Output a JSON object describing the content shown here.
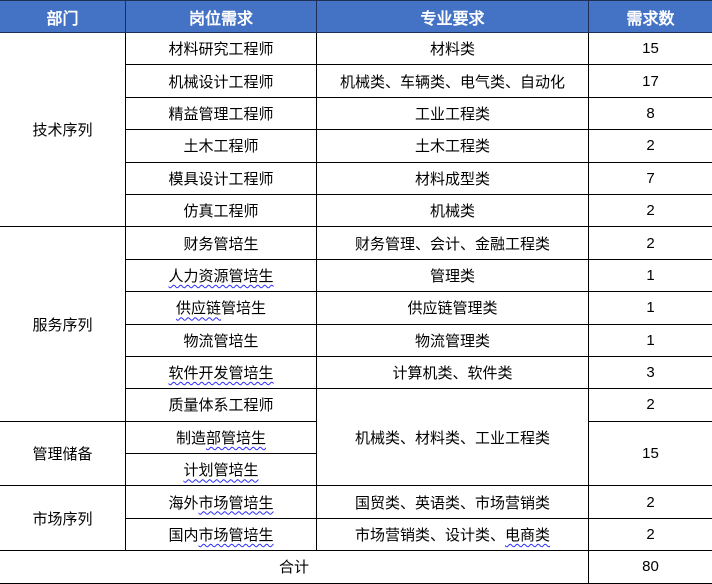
{
  "header": [
    "部门",
    "岗位需求",
    "专业要求",
    "需求数"
  ],
  "colors": {
    "header_bg": "#4472C4",
    "header_text": "#FFFFFF",
    "spellcheck_underline": "#2A2AFF"
  },
  "departments": [
    "技术序列",
    "服务序列",
    "管理储备",
    "市场序列"
  ],
  "positions": [
    {
      "a": "材料研究工程师",
      "u": ""
    },
    {
      "a": "机械设计工程师",
      "u": ""
    },
    {
      "a": "精益管理工程师",
      "u": ""
    },
    {
      "a": "土木工程师",
      "u": ""
    },
    {
      "a": "模具设计工程师",
      "u": ""
    },
    {
      "a": "仿真工程师",
      "u": ""
    },
    {
      "a": "财务管培生",
      "u": ""
    },
    {
      "a": "",
      "u": "人力资源管培生"
    },
    {
      "a": "",
      "u": "供应链",
      "b": "管培生"
    },
    {
      "a": "物流管培生",
      "u": ""
    },
    {
      "a": "",
      "u": "软件开发管培生"
    },
    {
      "a": "质量体系工程师",
      "u": ""
    },
    {
      "a": "制造",
      "u": "部管培生"
    },
    {
      "a": "",
      "u": "计划管培生"
    },
    {
      "a": "海外",
      "u": "市场管培生"
    },
    {
      "a": "国内",
      "u": "市场管培生"
    }
  ],
  "majors": [
    {
      "a": "材料类"
    },
    {
      "a": "机械类、车辆类、电气类、自动化"
    },
    {
      "a": "工业工程类"
    },
    {
      "a": "土木工程类"
    },
    {
      "a": "材料成型类"
    },
    {
      "a": "机械类"
    },
    {
      "a": "财务管理、会计、金融工程类"
    },
    {
      "a": "管理类"
    },
    {
      "a": "供应链管理类"
    },
    {
      "a": "物流管理类"
    },
    {
      "a": "计算机类、软件类"
    },
    {
      "a": "机械类、材料类、工业工程类"
    },
    {
      "a": "国贸类、英语类、市场营销类"
    },
    {
      "a": "市场营销类、设计类、",
      "u": "电商类"
    }
  ],
  "counts": [
    "15",
    "17",
    "8",
    "2",
    "7",
    "2",
    "2",
    "1",
    "1",
    "1",
    "3",
    "2",
    "15",
    "2",
    "2"
  ],
  "total": {
    "label": "合计",
    "value": "80"
  }
}
